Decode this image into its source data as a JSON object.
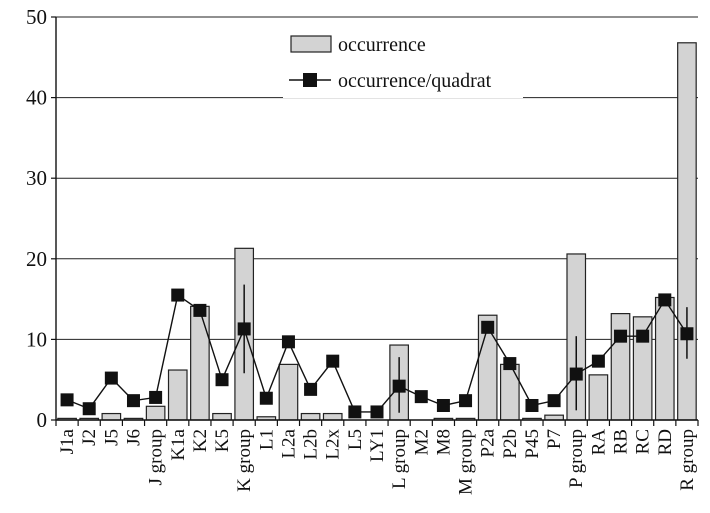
{
  "chart_data": {
    "type": "bar",
    "categories": [
      "J1a",
      "J2",
      "J5",
      "J6",
      "J group",
      "K1a",
      "K2",
      "K5",
      "K group",
      "L1",
      "L2a",
      "L2b",
      "L2x",
      "L5",
      "LY1",
      "L group",
      "M2",
      "M8",
      "M group",
      "P2a",
      "P2b",
      "P45",
      "P7",
      "P group",
      "RA",
      "RB",
      "RC",
      "RD",
      "R group"
    ],
    "series": [
      {
        "name": "occurrence",
        "kind": "bar",
        "color": "#d3d3d3",
        "values": [
          0.2,
          0.2,
          0.8,
          0.2,
          1.7,
          6.2,
          14.1,
          0.8,
          21.3,
          0.4,
          6.9,
          0.8,
          0.8,
          0,
          0,
          9.3,
          0,
          0.2,
          0.2,
          13.0,
          6.9,
          0.2,
          0.6,
          20.6,
          5.6,
          13.2,
          12.8,
          15.2,
          46.8
        ]
      },
      {
        "name": "occurrence/quadrat",
        "kind": "line",
        "color": "#111111",
        "values": [
          2.5,
          1.4,
          5.2,
          2.4,
          2.8,
          15.5,
          13.6,
          5.0,
          11.3,
          2.7,
          9.7,
          3.8,
          7.3,
          1.0,
          1.0,
          4.2,
          2.9,
          1.8,
          2.4,
          11.5,
          7.0,
          1.8,
          2.4,
          5.7,
          7.3,
          10.4,
          10.4,
          14.9,
          10.7
        ],
        "error_bars": [
          {
            "category": "K group",
            "low": 5.8,
            "high": 16.8
          },
          {
            "category": "L group",
            "low": 0.9,
            "high": 7.8
          },
          {
            "category": "P group",
            "low": 1.2,
            "high": 10.4
          },
          {
            "category": "R group",
            "low": 7.6,
            "high": 14.0
          }
        ]
      }
    ],
    "yticks": [
      0,
      10,
      20,
      30,
      40,
      50
    ],
    "ylim": [
      0,
      50
    ],
    "grid": "horizontal",
    "legend_position": "top-center"
  }
}
